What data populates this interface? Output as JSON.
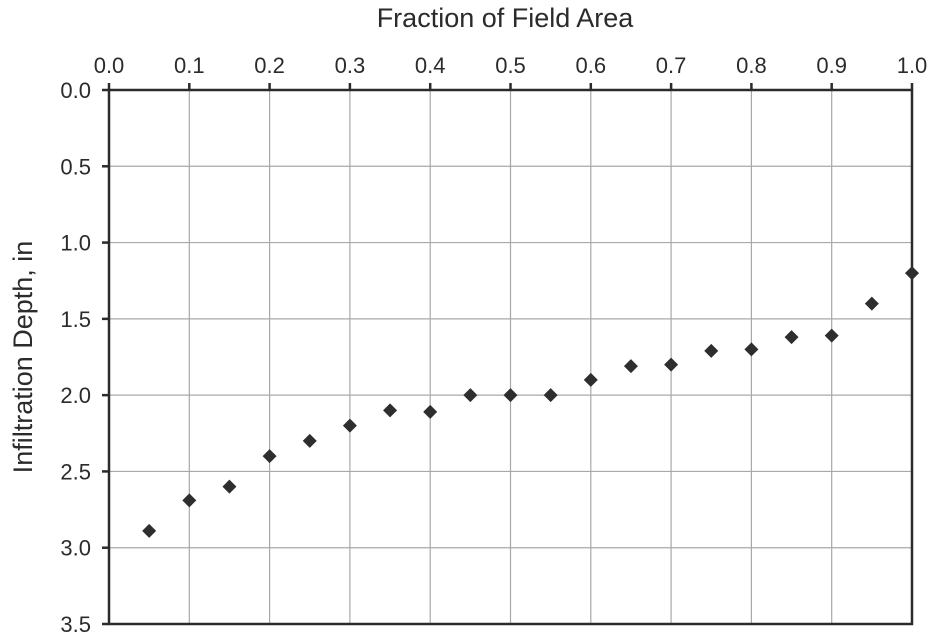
{
  "chart_data": {
    "type": "scatter",
    "title": "",
    "xlabel": "Fraction of Field Area",
    "ylabel": "Infiltration Depth, in",
    "xlim": [
      0.0,
      1.0
    ],
    "ylim": [
      0.0,
      3.5
    ],
    "y_inverted": true,
    "x_axis_position": "top",
    "x_ticks": [
      "0.0",
      "0.1",
      "0.2",
      "0.3",
      "0.4",
      "0.5",
      "0.6",
      "0.7",
      "0.8",
      "0.9",
      "1.0"
    ],
    "y_ticks": [
      "0.0",
      "0.5",
      "1.0",
      "1.5",
      "2.0",
      "2.5",
      "3.0",
      "3.5"
    ],
    "grid": true,
    "marker": "diamond",
    "marker_color": "#2e2e2e",
    "series": [
      {
        "x": [
          0.05,
          0.1,
          0.15,
          0.2,
          0.25,
          0.3,
          0.35,
          0.4,
          0.45,
          0.5,
          0.55,
          0.6,
          0.65,
          0.7,
          0.75,
          0.8,
          0.85,
          0.9,
          0.95,
          1.0
        ],
        "y": [
          2.89,
          2.69,
          2.6,
          2.4,
          2.3,
          2.2,
          2.1,
          2.11,
          2.0,
          2.0,
          2.0,
          1.9,
          1.81,
          1.8,
          1.71,
          1.7,
          1.62,
          1.61,
          1.4,
          1.2
        ]
      }
    ]
  }
}
